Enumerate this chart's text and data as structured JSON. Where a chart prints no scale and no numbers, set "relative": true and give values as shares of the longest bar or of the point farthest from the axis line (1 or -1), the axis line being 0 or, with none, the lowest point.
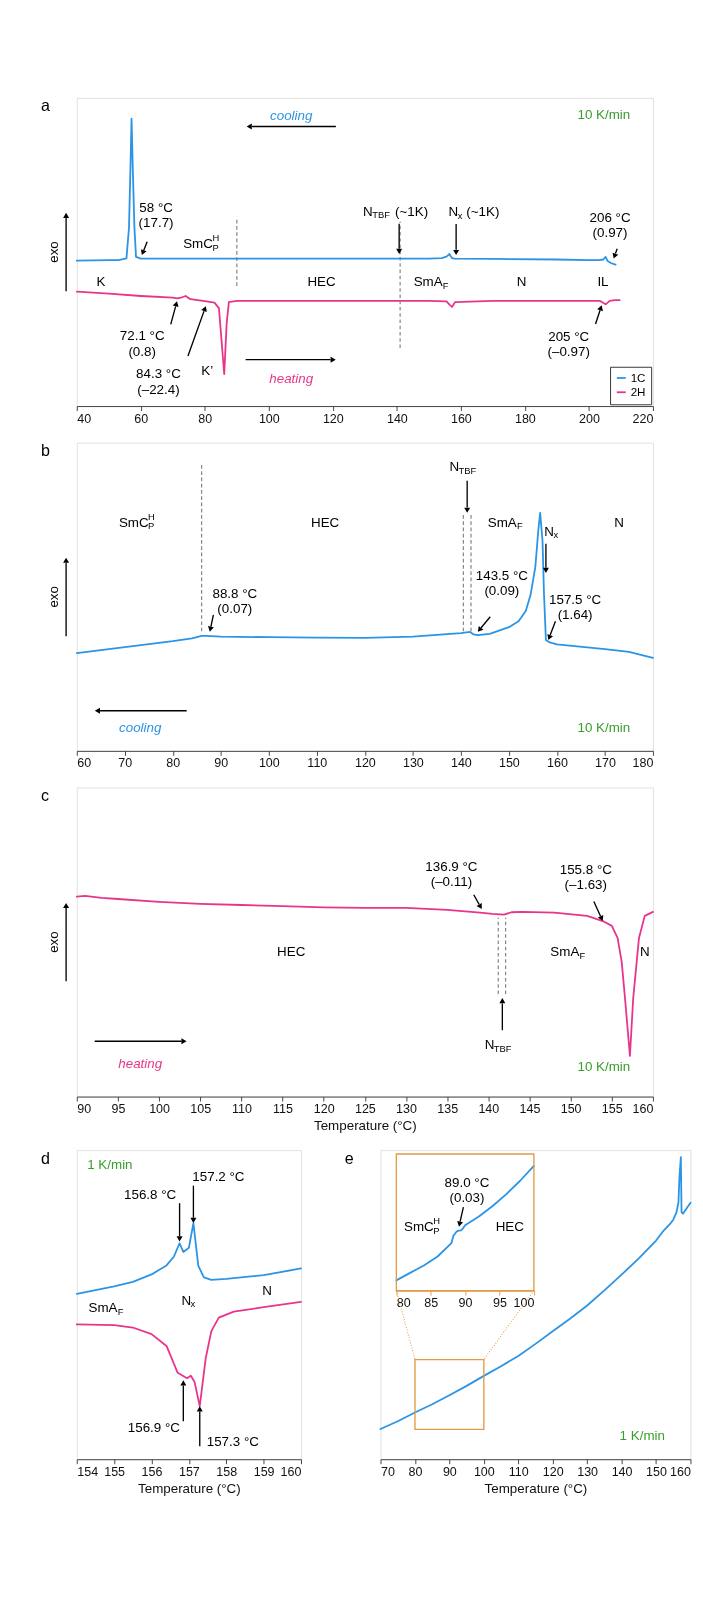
{
  "chart_data": [
    {
      "type": "line",
      "title": "a",
      "ylabel": "exo",
      "relative": true,
      "xlim": [
        40,
        220
      ],
      "xticks": [
        40,
        60,
        80,
        100,
        120,
        140,
        160,
        180,
        200,
        220
      ],
      "legend": "bottom right",
      "series": [
        {
          "name": "1C",
          "color": "#2b94e5",
          "x": [
            40,
            50,
            53,
            55.5,
            56.3,
            56.8,
            57.1,
            57.5,
            58,
            58.5,
            60,
            70,
            90,
            120,
            140,
            150,
            154,
            155.5,
            156.4,
            157.2,
            158,
            170,
            190,
            200,
            203,
            204.5,
            205.2,
            205.8,
            207,
            208.3
          ],
          "values": [
            0.506,
            0.508,
            0.508,
            0.514,
            0.62,
            0.85,
            1.0,
            0.82,
            0.62,
            0.519,
            0.513,
            0.513,
            0.513,
            0.513,
            0.513,
            0.513,
            0.515,
            0.52,
            0.529,
            0.515,
            0.513,
            0.512,
            0.51,
            0.508,
            0.508,
            0.51,
            0.519,
            0.505,
            0.497,
            0.492
          ]
        },
        {
          "name": "2H",
          "color": "#e8358b",
          "x": [
            40,
            50,
            60,
            70,
            71.3,
            72.5,
            74,
            75.5,
            80,
            83,
            84.4,
            85.3,
            86.05,
            86.8,
            87.5,
            90,
            120,
            150,
            155.5,
            156.5,
            157.2,
            158.2,
            170,
            200,
            203.5,
            205.2,
            206.5,
            208,
            209.6
          ],
          "values": [
            0.398,
            0.391,
            0.383,
            0.377,
            0.375,
            0.377,
            0.383,
            0.372,
            0.365,
            0.36,
            0.341,
            0.216,
            0.111,
            0.286,
            0.362,
            0.366,
            0.366,
            0.366,
            0.364,
            0.352,
            0.345,
            0.362,
            0.366,
            0.366,
            0.366,
            0.354,
            0.366,
            0.369,
            0.369
          ]
        }
      ],
      "ref_lines": [
        {
          "axis": "x",
          "value": 90,
          "color": "#777777",
          "line_style": "dashed"
        },
        {
          "axis": "x",
          "value": 141,
          "color": "#777777",
          "line_style": "dashed"
        }
      ],
      "annotations": [
        {
          "text": "58 °C\n(17.7)",
          "x": 60.3,
          "y": 0.525
        },
        "SmC$^{H}$$_{P}$",
        {
          "text": "N$_{TBF}$ (~1K)",
          "x": 140.7,
          "y": 0.529
        },
        {
          "text": "N$_{x}$ (~1K)",
          "x": 158.5,
          "y": 0.525
        },
        {
          "text": "206 °C\n(0.97)",
          "x": 207.7,
          "y": 0.513
        },
        "K",
        "HEC",
        "SmA$_{F}$",
        "N",
        "IL",
        {
          "text": "72.1 °C\n(0.8)",
          "x": 71.3,
          "y": 0.365
        },
        {
          "text": "84.3 °C\n(–22.4)",
          "x": 80.3,
          "y": 0.348
        },
        "K’",
        {
          "text": "205 °C\n(–0.97)",
          "x": 204.0,
          "y": 0.351
        },
        "cooling",
        "heating",
        "10 K/min"
      ]
    },
    {
      "type": "line",
      "title": "b",
      "ylabel": "exo",
      "relative": true,
      "xlim": [
        60,
        180
      ],
      "xticks": [
        60,
        70,
        80,
        90,
        100,
        110,
        120,
        130,
        140,
        150,
        160,
        170,
        180
      ],
      "series": [
        {
          "color": "#2b94e5",
          "x": [
            60,
            70,
            80,
            84,
            86,
            87,
            90,
            100,
            110,
            120,
            130,
            140,
            141.9,
            142.6,
            143.5,
            146,
            150,
            152,
            153.5,
            154.5,
            155.5,
            156.1,
            156.5,
            157,
            157.3,
            157.7,
            158.5,
            160,
            170,
            175,
            180
          ],
          "values": [
            0.411,
            0.436,
            0.461,
            0.473,
            0.483,
            0.483,
            0.48,
            0.478,
            0.476,
            0.475,
            0.48,
            0.495,
            0.5,
            0.49,
            0.487,
            0.492,
            0.52,
            0.545,
            0.588,
            0.655,
            0.773,
            0.924,
            1.0,
            0.88,
            0.66,
            0.466,
            0.456,
            0.448,
            0.428,
            0.416,
            0.391
          ]
        }
      ],
      "ref_lines": [
        {
          "axis": "x",
          "value": 86.0,
          "color": "#777777",
          "line_style": "dashed"
        },
        {
          "axis": "x",
          "value": 140.5,
          "color": "#777777",
          "line_style": "dashed"
        },
        {
          "axis": "x",
          "value": 142.1,
          "color": "#777777",
          "line_style": "dashed"
        }
      ],
      "annotations": [
        "SmC$^{H}$$_{P}$",
        "HEC",
        {
          "text": "N$_{TBF}$",
          "x": 141.3,
          "y": 1.0
        },
        "SmA$_{F}$",
        {
          "text": "N$_{x}$",
          "x": 157.7,
          "y": 0.747
        },
        "N",
        {
          "text": "88.8 °C\n(0.07)",
          "x": 87.7,
          "y": 0.5
        },
        {
          "text": "143.5 °C\n(0.09)",
          "x": 143.5,
          "y": 0.5
        },
        {
          "text": "157.5 °C\n(1.64)",
          "x": 158.2,
          "y": 0.466
        },
        "cooling",
        "10 K/min"
      ]
    },
    {
      "type": "line",
      "title": "c",
      "ylabel": "exo",
      "xlabel": "Temperature (°C)",
      "relative": true,
      "xlim": [
        90,
        160
      ],
      "xticks": [
        90,
        95,
        100,
        105,
        110,
        115,
        120,
        125,
        130,
        135,
        140,
        145,
        150,
        155,
        160
      ],
      "series": [
        {
          "color": "#e8358b",
          "x": [
            90,
            91,
            93,
            95,
            100,
            105,
            110,
            115,
            120,
            125,
            130,
            135,
            139,
            140.5,
            141.9,
            142.8,
            144.1,
            148,
            152,
            153.9,
            155,
            155.7,
            156.2,
            156.6,
            157.2,
            157.6,
            158.3,
            159,
            160
          ],
          "values": [
            0.996,
            1.0,
            0.99,
            0.984,
            0.97,
            0.96,
            0.954,
            0.948,
            0.942,
            0.94,
            0.94,
            0.93,
            0.916,
            0.91,
            0.906,
            0.918,
            0.92,
            0.916,
            0.9,
            0.874,
            0.85,
            0.79,
            0.671,
            0.491,
            0.202,
            0.491,
            0.79,
            0.9,
            0.92
          ]
        }
      ],
      "ref_lines": [
        {
          "axis": "x",
          "value": 141.2,
          "color": "#777777",
          "line_style": "dashed"
        },
        {
          "axis": "x",
          "value": 142.1,
          "color": "#777777",
          "line_style": "dashed"
        }
      ],
      "annotations": [
        {
          "text": "136.9 °C\n(–0.11)",
          "x": 139.2,
          "y": 0.934
        },
        {
          "text": "155.8 °C\n(–1.63)",
          "x": 153.9,
          "y": 0.874
        },
        "HEC",
        "SmA$_{F}$",
        "N",
        {
          "text": "N$_{TBF}$",
          "x": 141.7,
          "y": 0.491
        },
        "heating",
        "10 K/min"
      ]
    },
    {
      "type": "line",
      "title": "d",
      "xlabel": "Temperature (°C)",
      "relative": true,
      "xlim": [
        154,
        160
      ],
      "xticks": [
        154,
        155,
        156,
        157,
        158,
        159,
        160
      ],
      "series": [
        {
          "color": "#2b94e5",
          "x": [
            154,
            155,
            155.5,
            156,
            156.4,
            156.6,
            156.75,
            156.85,
            157.0,
            157.12,
            157.25,
            157.4,
            157.6,
            158,
            159,
            160
          ],
          "values": [
            0.701,
            0.732,
            0.751,
            0.783,
            0.821,
            0.859,
            0.915,
            0.878,
            0.896,
            1.0,
            0.82,
            0.77,
            0.76,
            0.764,
            0.78,
            0.808
          ]
        },
        {
          "color": "#e8358b",
          "x": [
            154,
            155,
            155.5,
            156,
            156.4,
            156.7,
            156.95,
            157.05,
            157.15,
            157.29,
            157.45,
            157.6,
            157.8,
            158.2,
            159,
            160
          ],
          "values": [
            0.571,
            0.568,
            0.558,
            0.53,
            0.48,
            0.366,
            0.343,
            0.354,
            0.328,
            0.225,
            0.429,
            0.543,
            0.6,
            0.625,
            0.644,
            0.667
          ]
        }
      ],
      "annotations": [
        {
          "text": "156.8 °C",
          "x": 156.75,
          "y": 0.922
        },
        {
          "text": "157.2 °C",
          "x": 157.12,
          "y": 1.0
        },
        {
          "text": "156.9 °C",
          "x": 156.85,
          "y": 0.335
        },
        {
          "text": "157.3 °C",
          "x": 157.29,
          "y": 0.225
        },
        "SmA$_{F}$",
        "N$_{x}$",
        "N",
        "1 K/min"
      ]
    },
    {
      "type": "line",
      "title": "e",
      "xlabel": "Temperature (°C)",
      "relative": true,
      "xlim": [
        70,
        160
      ],
      "xticks": [
        70,
        80,
        90,
        100,
        110,
        120,
        130,
        140,
        150,
        160
      ],
      "series": [
        {
          "color": "#2b94e5",
          "x": [
            70,
            75,
            80,
            85,
            90,
            95,
            100,
            105,
            110,
            115,
            120,
            125,
            130,
            135,
            140,
            145,
            150,
            152,
            154,
            155,
            155.9,
            156.5,
            156.8,
            157.2,
            157.4,
            157.8,
            160
          ],
          "values": [
            0.1,
            0.126,
            0.155,
            0.182,
            0.212,
            0.243,
            0.276,
            0.308,
            0.342,
            0.382,
            0.424,
            0.465,
            0.509,
            0.559,
            0.611,
            0.665,
            0.724,
            0.754,
            0.778,
            0.793,
            0.816,
            0.85,
            0.936,
            1.0,
            0.818,
            0.813,
            0.849
          ]
        }
      ],
      "annotations": [
        "1 K/min"
      ]
    },
    {
      "type": "line",
      "relative": true,
      "xlim": [
        80,
        100
      ],
      "xticks": [
        80,
        85,
        90,
        95,
        100
      ],
      "series": [
        {
          "color": "#2b94e5",
          "x": [
            80,
            82,
            84,
            86,
            88,
            88.3,
            88.8,
            89.1,
            89.4,
            89.7,
            90,
            92,
            94,
            96,
            98,
            100
          ],
          "values": [
            0.083,
            0.143,
            0.202,
            0.274,
            0.381,
            0.44,
            0.476,
            0.481,
            0.483,
            0.5,
            0.524,
            0.595,
            0.679,
            0.774,
            0.881,
            1.0
          ]
        }
      ],
      "annotations": [
        {
          "text": "89.0 °C\n(0.03)",
          "x": 89.1,
          "y": 0.512
        },
        "SmC$^{H}$$_{P}$",
        "HEC"
      ]
    }
  ]
}
